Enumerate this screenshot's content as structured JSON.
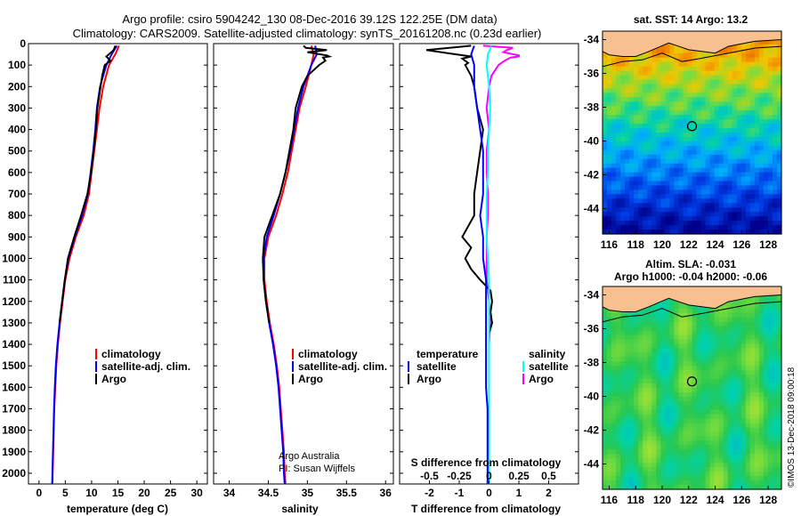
{
  "header": {
    "line1": "Argo profile: csiro 5904242_130 08-Dec-2016 39.12S 122.25E (DM data)",
    "line2": "Climatology: CARS2009. Satellite-adjusted climatology: synTS_20161208.nc (0.23d earlier)"
  },
  "colors": {
    "climatology": "#ff0000",
    "satellite": "#0000ff",
    "argo": "#000000",
    "satellite_salinity": "#00ffff",
    "argo_salinity": "#ff00ff"
  },
  "chart_data": [
    {
      "type": "line",
      "xlabel": "temperature (deg C)",
      "xlim": [
        -2,
        32
      ],
      "xticks": [
        "0",
        "5",
        "10",
        "15",
        "20",
        "25",
        "30"
      ],
      "ylim": [
        0,
        2050
      ],
      "yticks": [
        "0",
        "100",
        "200",
        "300",
        "400",
        "500",
        "600",
        "700",
        "800",
        "900",
        "1000",
        "1100",
        "1200",
        "1300",
        "1400",
        "1500",
        "1600",
        "1700",
        "1800",
        "1900",
        "2000"
      ],
      "legend": [
        "climatology",
        "satellite-adj. clim.",
        "Argo"
      ],
      "legend_placement": "lower-right",
      "series": [
        {
          "name": "climatology",
          "y": [
            10,
            50,
            100,
            200,
            300,
            400,
            500,
            600,
            700,
            800,
            900,
            1000,
            1100,
            1200,
            1300,
            1400,
            1500,
            1600,
            1700,
            1800,
            1900,
            2000,
            2050
          ],
          "x": [
            15.2,
            14.5,
            13.3,
            12.2,
            11.5,
            11.0,
            10.5,
            10.0,
            9.5,
            8.5,
            7.0,
            5.8,
            5.0,
            4.5,
            4.0,
            3.6,
            3.3,
            3.1,
            2.9,
            2.8,
            2.7,
            2.6,
            2.55
          ]
        },
        {
          "name": "satellite-adj. clim.",
          "y": [
            10,
            50,
            100,
            200,
            300,
            400,
            500,
            600,
            700,
            800,
            900,
            1000,
            1100,
            1200,
            1300,
            1400,
            1500,
            1600,
            1700,
            1800,
            1900,
            2000,
            2050
          ],
          "x": [
            14.8,
            13.8,
            12.8,
            11.6,
            11.0,
            10.7,
            10.3,
            9.8,
            9.3,
            8.2,
            6.8,
            5.6,
            4.9,
            4.4,
            3.9,
            3.5,
            3.2,
            3.0,
            2.85,
            2.75,
            2.65,
            2.55,
            2.5
          ]
        },
        {
          "name": "Argo",
          "y": [
            10,
            30,
            60,
            80,
            100,
            150,
            200,
            300,
            400,
            500,
            600,
            700,
            800,
            900,
            1000,
            1100,
            1200,
            1300
          ],
          "x": [
            14.5,
            14.2,
            12.8,
            13.6,
            12.5,
            12.0,
            11.7,
            11.1,
            10.8,
            10.4,
            9.9,
            9.2,
            8.0,
            6.7,
            5.5,
            4.9,
            4.4,
            3.9
          ]
        }
      ]
    },
    {
      "type": "line",
      "xlabel": "salinity",
      "xlim": [
        33.8,
        36.1
      ],
      "xticks": [
        "34",
        "34.5",
        "35",
        "35.5",
        "36"
      ],
      "ylim": [
        0,
        2050
      ],
      "legend": [
        "climatology",
        "satellite-adj. clim.",
        "Argo"
      ],
      "legend_placement": "lower-right",
      "annotation": [
        "Argo Australia",
        "PI: Susan Wijffels"
      ],
      "series": [
        {
          "name": "climatology",
          "y": [
            10,
            50,
            100,
            200,
            300,
            400,
            500,
            600,
            700,
            800,
            900,
            1000,
            1100,
            1200,
            1300,
            1400,
            1500,
            1600,
            1700,
            1800,
            1900,
            2000,
            2050
          ],
          "x": [
            35.05,
            35.08,
            35.05,
            34.98,
            34.9,
            34.85,
            34.8,
            34.75,
            34.68,
            34.6,
            34.5,
            34.45,
            34.45,
            34.48,
            34.52,
            34.57,
            34.61,
            34.64,
            34.66,
            34.68,
            34.7,
            34.71,
            34.72
          ]
        },
        {
          "name": "satellite-adj. clim.",
          "y": [
            10,
            50,
            100,
            200,
            300,
            400,
            500,
            600,
            700,
            800,
            900,
            1000,
            1100,
            1200,
            1300,
            1400,
            1500,
            1600,
            1700,
            1800,
            1900,
            2000,
            2050
          ],
          "x": [
            35.1,
            35.12,
            35.05,
            34.95,
            34.88,
            34.83,
            34.78,
            34.72,
            34.65,
            34.57,
            34.48,
            34.44,
            34.44,
            34.47,
            34.51,
            34.56,
            34.6,
            34.63,
            34.65,
            34.67,
            34.69,
            34.7,
            34.71
          ]
        },
        {
          "name": "Argo",
          "y": [
            10,
            20,
            30,
            40,
            55,
            60,
            65,
            80,
            100,
            150,
            200,
            300,
            400,
            500,
            600,
            700,
            800,
            900,
            1000,
            1100,
            1200,
            1300
          ],
          "x": [
            34.95,
            34.98,
            35.25,
            35.0,
            35.25,
            35.28,
            35.2,
            35.23,
            35.15,
            35.0,
            34.93,
            34.85,
            34.82,
            34.77,
            34.72,
            34.65,
            34.55,
            34.45,
            34.43,
            34.44,
            34.47,
            34.51
          ]
        }
      ]
    },
    {
      "type": "line",
      "xlabel": "T difference from climatology",
      "xlabel2": "S difference from climatology",
      "xlim": [
        -3,
        3
      ],
      "xticks": [
        "-2",
        "-1",
        "0",
        "1",
        "2"
      ],
      "xlim2": [
        -0.75,
        0.75
      ],
      "xticks2": [
        "-0.5",
        "-0.25",
        "0",
        "0.25",
        "0.5"
      ],
      "ylim": [
        0,
        2050
      ],
      "legend_left_title": "temperature",
      "legend_right_title": "salinity",
      "legend_left": [
        "satellite",
        "Argo"
      ],
      "legend_right": [
        "satellite",
        "Argo"
      ],
      "series": [
        {
          "name": "temperature satellite",
          "y": [
            10,
            50,
            100,
            200,
            300,
            400,
            500,
            600,
            700,
            800,
            900,
            1000,
            1100,
            1200,
            1300,
            1400,
            1500,
            1600,
            1700,
            1800,
            1900,
            2000,
            2050
          ],
          "x": [
            -0.5,
            -0.6,
            -0.5,
            -0.5,
            -0.4,
            -0.3,
            -0.2,
            -0.2,
            -0.2,
            -0.3,
            -0.2,
            -0.2,
            -0.1,
            -0.1,
            -0.1,
            -0.1,
            -0.1,
            -0.1,
            -0.05,
            -0.05,
            -0.05,
            -0.05,
            -0.05
          ]
        },
        {
          "name": "temperature Argo",
          "y": [
            10,
            30,
            50,
            60,
            70,
            90,
            100,
            150,
            200,
            300,
            400,
            500,
            600,
            700,
            800,
            900,
            950,
            1000,
            1050,
            1100,
            1150,
            1200,
            1250,
            1300,
            1350,
            1400,
            1500,
            1600,
            1700,
            1800,
            1900,
            2000,
            2050
          ],
          "x": [
            -0.6,
            -2.1,
            -1.1,
            -0.6,
            -0.9,
            -0.7,
            -0.8,
            -0.6,
            -0.5,
            -0.4,
            -0.2,
            -0.3,
            -0.4,
            -0.5,
            -0.5,
            -0.9,
            -0.6,
            -0.8,
            -0.6,
            -0.3,
            0.05,
            0.1,
            0.05,
            0.1,
            0.0,
            0.0,
            0.0,
            0.0,
            0.0,
            0.0,
            0.0,
            0.0,
            0.0
          ]
        },
        {
          "name": "salinity satellite",
          "y": [
            10,
            50,
            100,
            200,
            300,
            400,
            500,
            600,
            700,
            800,
            900,
            1000,
            1100,
            1200,
            1300,
            1400,
            1500,
            1600,
            1700,
            1800,
            1900,
            2000,
            2050
          ],
          "x": [
            0.02,
            -0.01,
            -0.02,
            0.0,
            0.01,
            0.0,
            -0.01,
            -0.01,
            -0.02,
            -0.02,
            -0.02,
            -0.01,
            0.0,
            0.0,
            0.0,
            0.0,
            0.0,
            0.0,
            0.0,
            0.0,
            0.0,
            0.0,
            0.0
          ]
        },
        {
          "name": "salinity Argo",
          "y": [
            10,
            20,
            30,
            40,
            55,
            60,
            65,
            80,
            100,
            150,
            200,
            300,
            400,
            500,
            600,
            700,
            800,
            900,
            1000,
            1100,
            1200,
            1300,
            1400,
            1500,
            1600,
            1700,
            1800,
            1900,
            2000,
            2050
          ],
          "x": [
            -0.05,
            0.2,
            0.15,
            0.12,
            0.25,
            0.25,
            0.18,
            0.13,
            0.08,
            0.02,
            0.0,
            -0.02,
            0.0,
            -0.02,
            -0.02,
            -0.01,
            -0.01,
            -0.02,
            -0.02,
            -0.02,
            0.0,
            0.01,
            0.0,
            0.0,
            0.0,
            0.0,
            0.0,
            0.0,
            0.0,
            0.0
          ]
        }
      ]
    },
    {
      "type": "heatmap",
      "title": "sat. SST: 14 Argo: 13.2",
      "xlim": [
        115.5,
        129
      ],
      "ylim": [
        -45.5,
        -33.5
      ],
      "xticks": [
        "116",
        "118",
        "120",
        "122",
        "124",
        "126",
        "128"
      ],
      "yticks": [
        "-34",
        "-36",
        "-38",
        "-40",
        "-42",
        "-44"
      ],
      "marker": {
        "lon": 122.25,
        "lat": -39.12
      }
    },
    {
      "type": "heatmap",
      "title": "Altim. SLA: -0.031",
      "title2": "Argo h1000: -0.04 h2000: -0.06",
      "xlim": [
        115.5,
        129
      ],
      "ylim": [
        -45.5,
        -33.5
      ],
      "xticks": [
        "116",
        "118",
        "120",
        "122",
        "124",
        "126",
        "128"
      ],
      "yticks": [
        "-34",
        "-36",
        "-38",
        "-40",
        "-42",
        "-44"
      ],
      "marker": {
        "lon": 122.25,
        "lat": -39.12
      }
    }
  ],
  "credit": "©IMOS 13-Dec-2018 09:00:18"
}
